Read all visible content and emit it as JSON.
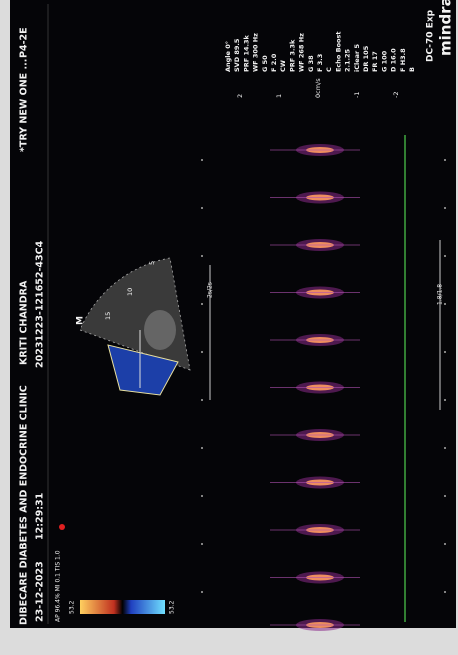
{
  "header": {
    "clinic": "DIBECARE DIABETES AND ENDOCRINE CLINIC",
    "patient": "KRITI CHANDRA",
    "exam": "*TRY NEW ONE ...",
    "probe": "P4-2E",
    "date": "23-12-2023",
    "time": "12:29:31",
    "id": "20231223-121652-43C4"
  },
  "brand": {
    "logo": "mindray",
    "model": "DC-70 Exp"
  },
  "acoustic": "AP 96.4% MI 0.1 TIS 1.0",
  "color_scale": {
    "top": "53.2",
    "bottom": "53.2"
  },
  "params": [
    "B",
    "F H3.8",
    "D 16.0",
    "G 100",
    "FR 17",
    "DR 105",
    "iClear 5",
    "2.1.25",
    "Echo Boost",
    "C",
    "F 3.3",
    "G 38",
    "WF 268 Hz",
    "PRF 3.3k",
    "CW",
    "F 2.0",
    "G 50",
    "WF 300 Hz",
    "PRF 14.3k",
    "SVD 89.5",
    "Angle 0°"
  ],
  "velocity_scale": [
    "2",
    "1",
    "0cm/s",
    "-1",
    "-2"
  ],
  "image_labels": {
    "mode": "M",
    "depths": [
      "5",
      "10",
      "15"
    ],
    "sweep": "2s/2s",
    "scale": "1.8/1.8"
  }
}
